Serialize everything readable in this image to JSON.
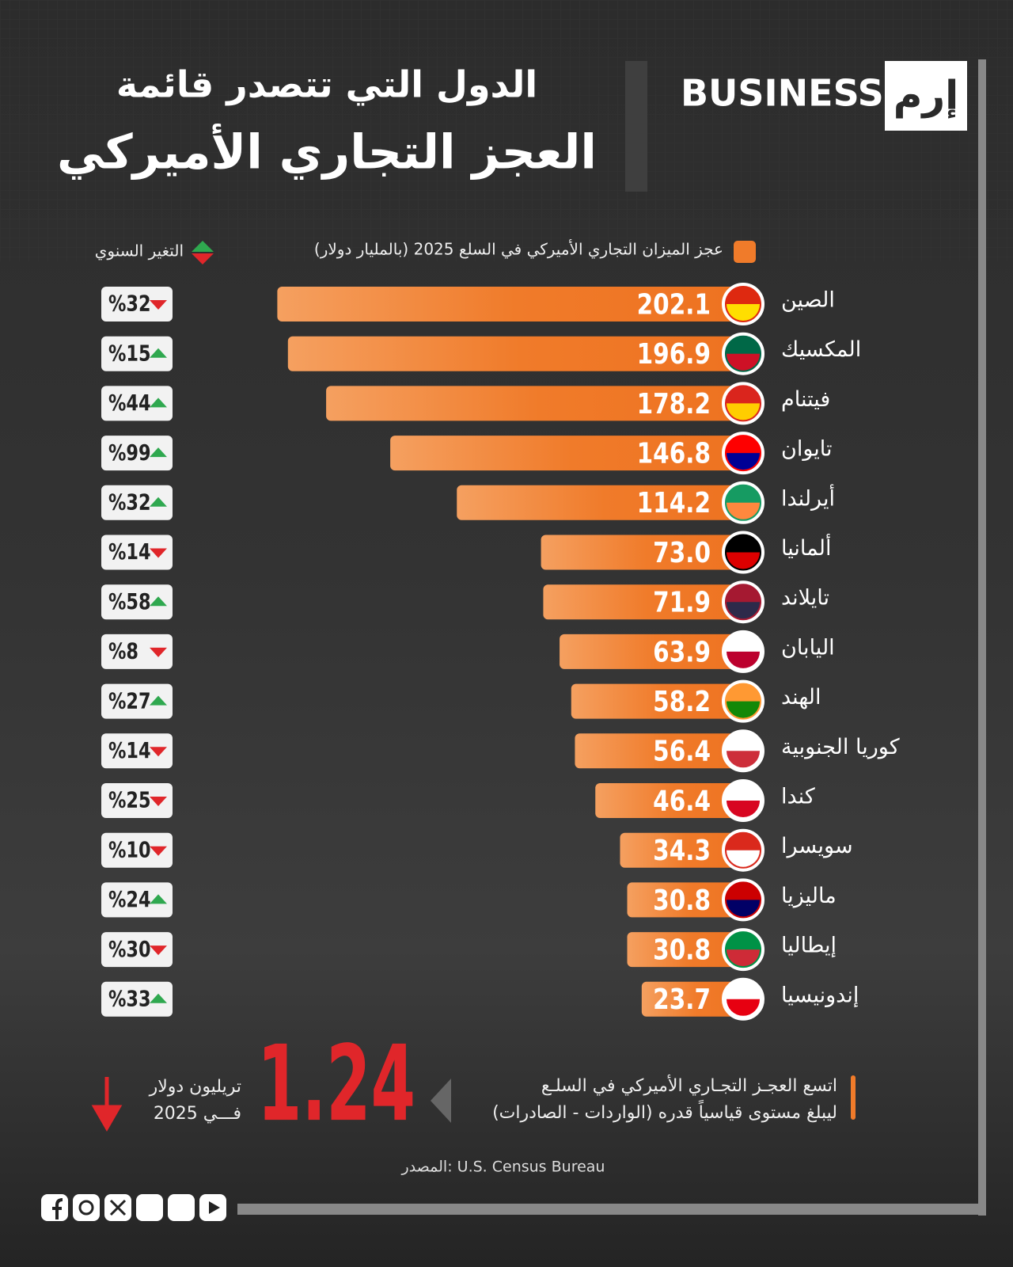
{
  "chart_data": {
    "type": "bar",
    "title": "العجز التجاري الأميركي",
    "subtitle": "الدول التي تتصدر قائمة",
    "brand": "BUSINESS",
    "brand_mark": "إرم",
    "legend_label": "عجز الميزان التجاري الأميركي في السلع 2025 (بالمليار دولار)",
    "change_header": "التغير السنوي",
    "color": "#f07b2a",
    "categories": [
      "الصين",
      "المكسيك",
      "فيتنام",
      "تايوان",
      "أيرلندا",
      "ألمانيا",
      "تايلاند",
      "اليابان",
      "الهند",
      "كوريا الجنوبية",
      "كندا",
      "سويسرا",
      "ماليزيا",
      "إيطاليا",
      "إندونيسيا"
    ],
    "values": [
      202.1,
      196.9,
      178.2,
      146.8,
      114.2,
      73.0,
      71.9,
      63.9,
      58.2,
      56.4,
      46.4,
      34.3,
      30.8,
      30.8,
      23.7
    ],
    "value_labels": [
      "202.1",
      "196.9",
      "178.2",
      "146.8",
      "114.2",
      "73.0",
      "71.9",
      "63.9",
      "58.2",
      "56.4",
      "46.4",
      "34.3",
      "30.8",
      "30.8",
      "23.7"
    ],
    "xlim": [
      0,
      210
    ],
    "annual_change": [
      {
        "value": 32,
        "label": "%32",
        "direction": "down"
      },
      {
        "value": 15,
        "label": "%15",
        "direction": "up"
      },
      {
        "value": 44,
        "label": "%44",
        "direction": "up"
      },
      {
        "value": 99,
        "label": "%99",
        "direction": "up"
      },
      {
        "value": 32,
        "label": "%32",
        "direction": "up"
      },
      {
        "value": 14,
        "label": "%14",
        "direction": "down"
      },
      {
        "value": 58,
        "label": "%58",
        "direction": "up"
      },
      {
        "value": 8,
        "label": "%8",
        "direction": "down"
      },
      {
        "value": 27,
        "label": "%27",
        "direction": "up"
      },
      {
        "value": 14,
        "label": "%14",
        "direction": "down"
      },
      {
        "value": 25,
        "label": "%25",
        "direction": "down"
      },
      {
        "value": 10,
        "label": "%10",
        "direction": "down"
      },
      {
        "value": 24,
        "label": "%24",
        "direction": "up"
      },
      {
        "value": 30,
        "label": "%30",
        "direction": "down"
      },
      {
        "value": 33,
        "label": "%33",
        "direction": "up"
      }
    ],
    "up_color": "#2fa84f",
    "down_color": "#e0262a",
    "highlight": {
      "number": 1.24,
      "unit": "تريليون دولار",
      "year": "فـــي 2025",
      "color": "#e0262a",
      "text_lines": [
        "اتسع العجـز التجـاري الأميركي في السلـع",
        "(الواردات - الصادرات) ليبلغ مستوى قياسياً قدره"
      ]
    },
    "source": "المصدر: U.S. Census Bureau"
  }
}
